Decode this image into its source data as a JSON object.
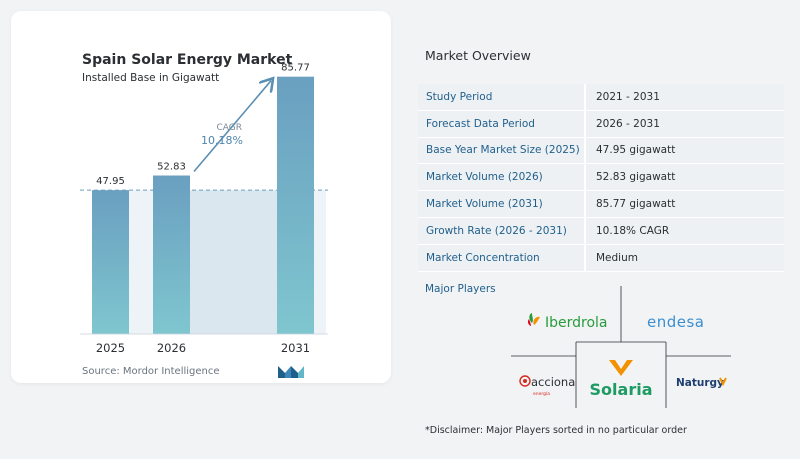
{
  "chart_card": {
    "title": "Spain Solar Energy Market",
    "subtitle": "Installed Base in Gigawatt",
    "cagr_label": "CAGR",
    "cagr_value": "10.18%",
    "source": "Source:  Mordor Intelligence"
  },
  "chart_data": {
    "type": "bar",
    "title": "Spain Solar Energy Market",
    "subtitle": "Installed Base in Gigawatt",
    "categories": [
      "2025",
      "2026",
      "2031"
    ],
    "values": [
      47.95,
      52.83,
      85.77
    ],
    "value_labels": [
      "47.95",
      "52.83",
      "85.77"
    ],
    "annotation": "CAGR 10.18%",
    "xlabel": "",
    "ylabel": "",
    "ylim": [
      0,
      100
    ],
    "grid": false,
    "colors": {
      "bar_top": "#6a9fc0",
      "bar_bottom": "#7fc6cf",
      "arrow": "#5a8fb3",
      "shaded": "#dbe7ef",
      "dashed_line": "#6a9fc0"
    }
  },
  "overview": {
    "title": "Market Overview",
    "rows": [
      {
        "key": "Study Period",
        "value": "2021 - 2031"
      },
      {
        "key": "Forecast Data Period",
        "value": "2026 - 2031"
      },
      {
        "key": "Base Year Market Size (2025)",
        "value": "47.95 gigawatt"
      },
      {
        "key": "Market Volume (2026)",
        "value": "52.83 gigawatt"
      },
      {
        "key": "Market Volume (2031)",
        "value": "85.77 gigawatt"
      },
      {
        "key": "Growth Rate (2026 - 2031)",
        "value": "10.18% CAGR"
      },
      {
        "key": "Market Concentration",
        "value": "Medium"
      }
    ]
  },
  "players": {
    "title": "Major Players",
    "logos": [
      "Iberdrola",
      "endesa",
      "acciona",
      "energía",
      "Solaria",
      "Naturgy"
    ]
  },
  "disclaimer": "*Disclaimer: Major Players sorted in no particular order",
  "colors": {
    "key_text": "#1f5f8b",
    "row_bg": "#eef1f4",
    "accent": "#4f86ad"
  }
}
